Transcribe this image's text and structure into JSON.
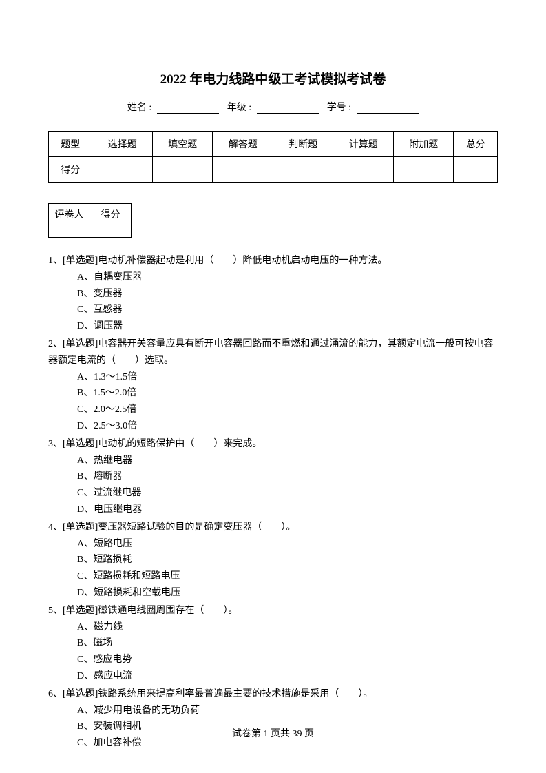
{
  "title": "2022 年电力线路中级工考试模拟考试卷",
  "info": {
    "name_label": "姓名 :",
    "grade_label": "年级 :",
    "id_label": "学号 :"
  },
  "score_table": {
    "headers": [
      "题型",
      "选择题",
      "填空题",
      "解答题",
      "判断题",
      "计算题",
      "附加题",
      "总分"
    ],
    "row2_label": "得分"
  },
  "grader_table": {
    "headers": [
      "评卷人",
      "得分"
    ]
  },
  "questions": [
    {
      "num": "1、",
      "text": "[单选题]电动机补偿器起动是利用（　　）降低电动机启动电压的一种方法。",
      "options": [
        "A、自耦变压器",
        "B、变压器",
        "C、互感器",
        "D、调压器"
      ]
    },
    {
      "num": "2、",
      "text": "[单选题]电容器开关容量应具有断开电容器回路而不重燃和通过涌流的能力，其额定电流一般可按电容器额定电流的（　　）选取。",
      "options": [
        "A、1.3～1.5倍",
        "B、1.5～2.0倍",
        "C、2.0～2.5倍",
        "D、2.5～3.0倍"
      ]
    },
    {
      "num": "3、",
      "text": "[单选题]电动机的短路保护由（　　）来完成。",
      "options": [
        "A、热继电器",
        "B、熔断器",
        "C、过流继电器",
        "D、电压继电器"
      ]
    },
    {
      "num": "4、",
      "text": "[单选题]变压器短路试验的目的是确定变压器（　　）。",
      "options": [
        "A、短路电压",
        "B、短路损耗",
        "C、短路损耗和短路电压",
        "D、短路损耗和空载电压"
      ]
    },
    {
      "num": "5、",
      "text": "[单选题]磁铁通电线圈周围存在（　　）。",
      "options": [
        "A、磁力线",
        "B、磁场",
        "C、感应电势",
        "D、感应电流"
      ]
    },
    {
      "num": "6、",
      "text": "[单选题]铁路系统用来提高利率最普遍最主要的技术措施是采用（　　）。",
      "options": [
        "A、减少用电设备的无功负荷",
        "B、安装调相机",
        "C、加电容补偿"
      ]
    }
  ],
  "footer": "试卷第 1 页共 39 页"
}
